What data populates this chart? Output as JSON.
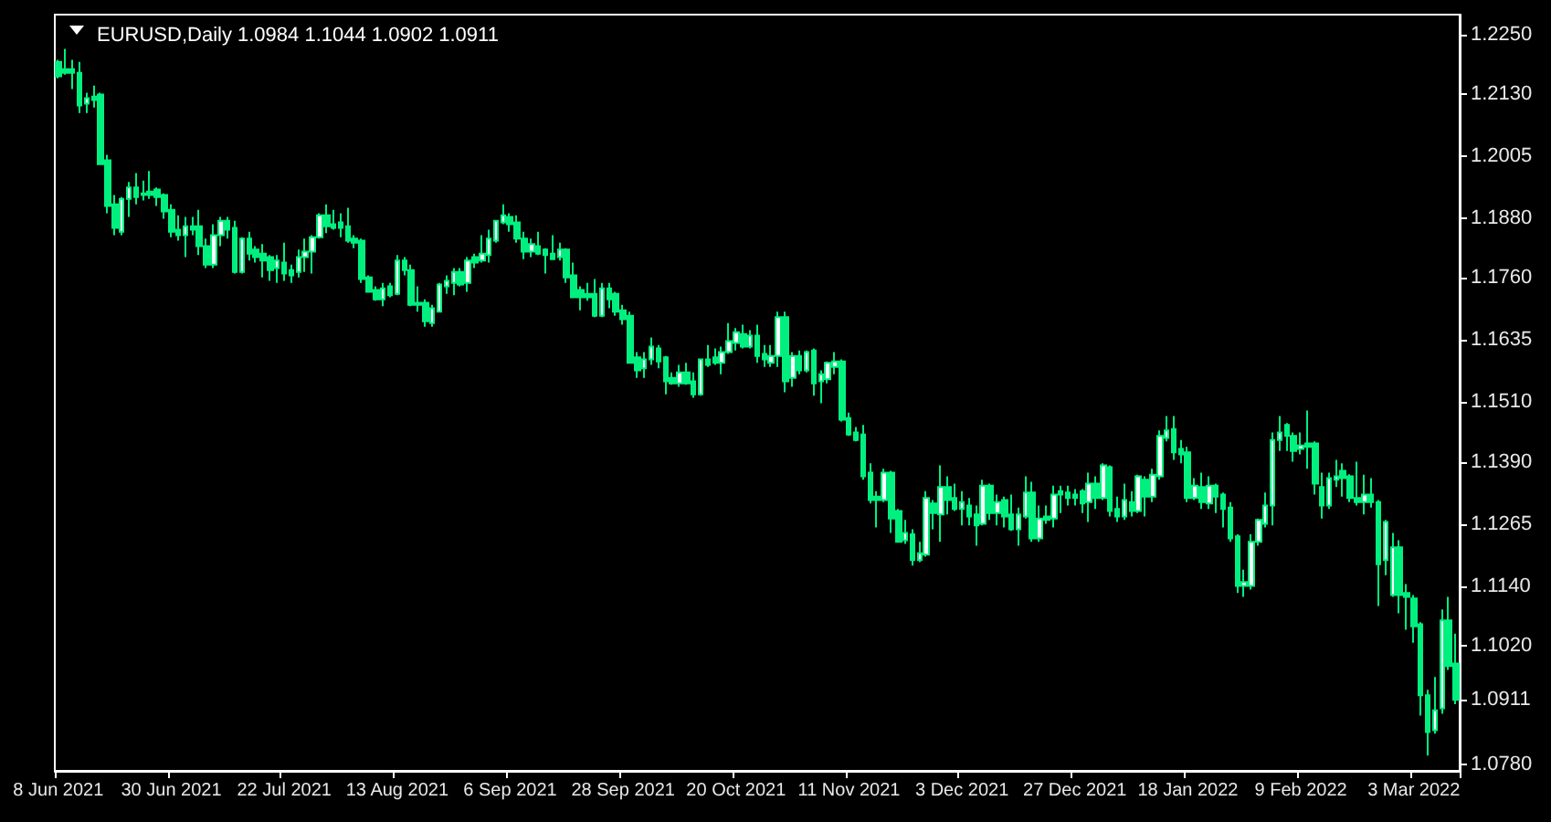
{
  "chart_data": {
    "type": "candlestick",
    "title": "EURUSD,Daily 1.0984 1.1044 1.0902 1.0911",
    "color": "#00f07f",
    "categories": [
      "8 Jun 2021",
      null,
      null,
      null,
      null,
      null,
      null,
      null,
      null,
      null,
      null,
      null,
      null,
      null,
      null,
      null,
      "30 Jun 2021",
      null,
      null,
      null,
      null,
      null,
      null,
      null,
      null,
      null,
      null,
      null,
      null,
      null,
      null,
      null,
      "22 Jul 2021",
      null,
      null,
      null,
      null,
      null,
      null,
      null,
      null,
      null,
      null,
      null,
      null,
      null,
      null,
      null,
      "13 Aug 2021",
      null,
      null,
      null,
      null,
      null,
      null,
      null,
      null,
      null,
      null,
      null,
      null,
      null,
      null,
      null,
      "6 Sep 2021",
      null,
      null,
      null,
      null,
      null,
      null,
      null,
      null,
      null,
      null,
      null,
      null,
      null,
      null,
      null,
      "28 Sep 2021",
      null,
      null,
      null,
      null,
      null,
      null,
      null,
      null,
      null,
      null,
      null,
      null,
      null,
      null,
      null,
      "20 Oct 2021",
      null,
      null,
      null,
      null,
      null,
      null,
      null,
      null,
      null,
      null,
      null,
      null,
      null,
      null,
      null,
      "11 Nov 2021",
      null,
      null,
      null,
      null,
      null,
      null,
      null,
      null,
      null,
      null,
      null,
      null,
      null,
      null,
      null,
      "3 Dec 2021",
      null,
      null,
      null,
      null,
      null,
      null,
      null,
      null,
      null,
      null,
      null,
      null,
      null,
      null,
      null,
      "27 Dec 2021",
      null,
      null,
      null,
      null,
      null,
      null,
      null,
      null,
      null,
      null,
      null,
      null,
      null,
      null,
      null,
      "18 Jan 2022",
      null,
      null,
      null,
      null,
      null,
      null,
      null,
      null,
      null,
      null,
      null,
      null,
      null,
      null,
      null,
      "9 Feb 2022",
      null,
      null,
      null,
      null,
      null,
      null,
      null,
      null,
      null,
      null,
      null,
      null,
      null,
      null,
      null,
      "3 Mar 2022",
      null,
      null,
      null,
      null,
      null,
      null
    ],
    "ylim": [
      1.0768,
      1.229
    ],
    "yticks": [
      {
        "value": 1.225,
        "label": "1.2250"
      },
      {
        "value": 1.213,
        "label": "1.2130"
      },
      1.2005,
      {
        "value": 1.188,
        "label": "1.1880"
      },
      {
        "value": 1.176,
        "label": "1.1760"
      },
      1.1635,
      {
        "value": 1.151,
        "label": "1.1510"
      },
      {
        "value": 1.139,
        "label": "1.1390"
      },
      1.1265,
      {
        "value": 1.114,
        "label": "1.1140"
      },
      {
        "value": 1.102,
        "label": "1.1020"
      },
      1.0911,
      {
        "value": 1.078,
        "label": "1.0780"
      }
    ],
    "grid": false,
    "ohlc": [
      [
        1.2195,
        1.2199,
        1.2162,
        1.2166
      ],
      [
        1.218,
        1.2221,
        1.2169,
        1.2173
      ],
      [
        1.218,
        1.2199,
        1.214,
        1.2173
      ],
      [
        1.2173,
        1.2195,
        1.2092,
        1.2107
      ],
      [
        1.2111,
        1.2133,
        1.2092,
        1.2122
      ],
      [
        1.2125,
        1.2147,
        1.2103,
        1.2118
      ],
      [
        1.2129,
        1.2133,
        1.1989,
        1.1989
      ],
      [
        1.1997,
        1.2008,
        1.189,
        1.1905
      ],
      [
        1.1908,
        1.1927,
        1.1846,
        1.1861
      ],
      [
        1.1853,
        1.1923,
        1.1846,
        1.1919
      ],
      [
        1.1919,
        1.1953,
        1.1883,
        1.1942
      ],
      [
        1.1942,
        1.1971,
        1.1908,
        1.1923
      ],
      [
        1.193,
        1.1956,
        1.1916,
        1.1927
      ],
      [
        1.1934,
        1.1975,
        1.1919,
        1.1927
      ],
      [
        1.1938,
        1.1942,
        1.1905,
        1.1923
      ],
      [
        1.1927,
        1.193,
        1.1879,
        1.1894
      ],
      [
        1.1897,
        1.1908,
        1.1842,
        1.1853
      ],
      [
        1.1857,
        1.1886,
        1.1835,
        1.1846
      ],
      [
        1.1846,
        1.1883,
        1.1802,
        1.1864
      ],
      [
        1.1864,
        1.1883,
        1.1846,
        1.1857
      ],
      [
        1.1864,
        1.1897,
        1.1806,
        1.1824
      ],
      [
        1.1824,
        1.1839,
        1.178,
        1.1787
      ],
      [
        1.1787,
        1.1868,
        1.178,
        1.1846
      ],
      [
        1.1846,
        1.1883,
        1.1824,
        1.1875
      ],
      [
        1.1875,
        1.1883,
        1.1839,
        1.1857
      ],
      [
        1.1861,
        1.1875,
        1.1769,
        1.1772
      ],
      [
        1.1772,
        1.1842,
        1.1769,
        1.1839
      ],
      [
        1.1839,
        1.1853,
        1.1795,
        1.1809
      ],
      [
        1.1817,
        1.1824,
        1.1791,
        1.1802
      ],
      [
        1.1809,
        1.1828,
        1.1761,
        1.1795
      ],
      [
        1.1802,
        1.1806,
        1.1754,
        1.1776
      ],
      [
        1.178,
        1.1806,
        1.175,
        1.1795
      ],
      [
        1.1791,
        1.1831,
        1.1754,
        1.1769
      ],
      [
        1.1776,
        1.1787,
        1.175,
        1.1765
      ],
      [
        1.1772,
        1.1817,
        1.1761,
        1.1802
      ],
      [
        1.1802,
        1.1839,
        1.1772,
        1.1813
      ],
      [
        1.1813,
        1.1846,
        1.1769,
        1.1842
      ],
      [
        1.1842,
        1.189,
        1.1839,
        1.1886
      ],
      [
        1.1886,
        1.1908,
        1.185,
        1.1864
      ],
      [
        1.1868,
        1.1897,
        1.1857,
        1.1861
      ],
      [
        1.1872,
        1.189,
        1.1842,
        1.1861
      ],
      [
        1.1864,
        1.1901,
        1.1831,
        1.1835
      ],
      [
        1.1839,
        1.1846,
        1.182,
        1.1831
      ],
      [
        1.1835,
        1.1839,
        1.175,
        1.1758
      ],
      [
        1.1761,
        1.1765,
        1.1732,
        1.1732
      ],
      [
        1.1736,
        1.1743,
        1.1714,
        1.1717
      ],
      [
        1.1717,
        1.175,
        1.1703,
        1.1739
      ],
      [
        1.1743,
        1.175,
        1.1721,
        1.1725
      ],
      [
        1.1728,
        1.1806,
        1.1725,
        1.1795
      ],
      [
        1.1795,
        1.1802,
        1.1765,
        1.1776
      ],
      [
        1.1776,
        1.1787,
        1.1703,
        1.1706
      ],
      [
        1.171,
        1.1743,
        1.1692,
        1.1706
      ],
      [
        1.171,
        1.1717,
        1.1662,
        1.1673
      ],
      [
        1.1669,
        1.1706,
        1.1662,
        1.1699
      ],
      [
        1.1692,
        1.175,
        1.1692,
        1.1747
      ],
      [
        1.1743,
        1.1765,
        1.1728,
        1.1754
      ],
      [
        1.175,
        1.178,
        1.1725,
        1.1772
      ],
      [
        1.1772,
        1.178,
        1.1743,
        1.1747
      ],
      [
        1.175,
        1.1802,
        1.1732,
        1.1795
      ],
      [
        1.1802,
        1.1809,
        1.178,
        1.1791
      ],
      [
        1.1795,
        1.1846,
        1.1791,
        1.1809
      ],
      [
        1.1806,
        1.1857,
        1.1791,
        1.1839
      ],
      [
        1.1835,
        1.1875,
        1.1831,
        1.1875
      ],
      [
        1.1872,
        1.1908,
        1.1868,
        1.1886
      ],
      [
        1.1883,
        1.189,
        1.1853,
        1.1868
      ],
      [
        1.1872,
        1.1886,
        1.1831,
        1.1839
      ],
      [
        1.1839,
        1.1853,
        1.1798,
        1.1813
      ],
      [
        1.1813,
        1.1839,
        1.1802,
        1.1828
      ],
      [
        1.1824,
        1.1853,
        1.1806,
        1.1809
      ],
      [
        1.1817,
        1.182,
        1.1769,
        1.1806
      ],
      [
        1.1809,
        1.1846,
        1.1798,
        1.1798
      ],
      [
        1.1802,
        1.1831,
        1.1795,
        1.1817
      ],
      [
        1.1817,
        1.182,
        1.175,
        1.1761
      ],
      [
        1.1765,
        1.1791,
        1.1721,
        1.1721
      ],
      [
        1.1736,
        1.1743,
        1.1695,
        1.1721
      ],
      [
        1.1728,
        1.175,
        1.1714,
        1.1721
      ],
      [
        1.1728,
        1.1758,
        1.1681,
        1.1684
      ],
      [
        1.1684,
        1.175,
        1.1681,
        1.1739
      ],
      [
        1.1739,
        1.175,
        1.1699,
        1.1717
      ],
      [
        1.1728,
        1.1732,
        1.1684,
        1.1692
      ],
      [
        1.1695,
        1.1706,
        1.1666,
        1.1677
      ],
      [
        1.1684,
        1.1692,
        1.1589,
        1.1589
      ],
      [
        1.16,
        1.1611,
        1.1559,
        1.1574
      ],
      [
        1.1578,
        1.1611,
        1.1559,
        1.1596
      ],
      [
        1.1596,
        1.164,
        1.1585,
        1.1622
      ],
      [
        1.1618,
        1.1625,
        1.1578,
        1.1592
      ],
      [
        1.16,
        1.1603,
        1.1526,
        1.1552
      ],
      [
        1.1559,
        1.157,
        1.1545,
        1.1548
      ],
      [
        1.1548,
        1.1585,
        1.1541,
        1.157
      ],
      [
        1.157,
        1.1589,
        1.1545,
        1.1548
      ],
      [
        1.1552,
        1.157,
        1.1519,
        1.1526
      ],
      [
        1.1526,
        1.1596,
        1.1523,
        1.1596
      ],
      [
        1.1596,
        1.1625,
        1.1581,
        1.1585
      ],
      [
        1.16,
        1.1618,
        1.1585,
        1.1589
      ],
      [
        1.1589,
        1.1622,
        1.1566,
        1.1611
      ],
      [
        1.1611,
        1.1669,
        1.1607,
        1.1633
      ],
      [
        1.1629,
        1.1659,
        1.1614,
        1.1651
      ],
      [
        1.1647,
        1.1666,
        1.1618,
        1.1622
      ],
      [
        1.1622,
        1.1655,
        1.1618,
        1.1644
      ],
      [
        1.1644,
        1.1666,
        1.1589,
        1.1603
      ],
      [
        1.1607,
        1.1625,
        1.1581,
        1.1596
      ],
      [
        1.1589,
        1.1625,
        1.1581,
        1.1603
      ],
      [
        1.1603,
        1.1692,
        1.1581,
        1.1681
      ],
      [
        1.1681,
        1.1692,
        1.153,
        1.1552
      ],
      [
        1.1559,
        1.1611,
        1.1541,
        1.1603
      ],
      [
        1.1603,
        1.1614,
        1.1566,
        1.1574
      ],
      [
        1.1574,
        1.1614,
        1.157,
        1.1611
      ],
      [
        1.1614,
        1.1618,
        1.1523,
        1.1548
      ],
      [
        1.1552,
        1.1574,
        1.1508,
        1.1566
      ],
      [
        1.1556,
        1.1592,
        1.1548,
        1.1589
      ],
      [
        1.1581,
        1.1611,
        1.1566,
        1.1592
      ],
      [
        1.1592,
        1.1596,
        1.1471,
        1.1475
      ],
      [
        1.1478,
        1.1489,
        1.1442,
        1.1445
      ],
      [
        1.1449,
        1.146,
        1.1431,
        1.1434
      ],
      [
        1.1445,
        1.1464,
        1.1354,
        1.1361
      ],
      [
        1.1368,
        1.1387,
        1.1306,
        1.1313
      ],
      [
        1.132,
        1.1331,
        1.1258,
        1.1313
      ],
      [
        1.1313,
        1.1376,
        1.1309,
        1.1368
      ],
      [
        1.1368,
        1.1372,
        1.1247,
        1.1276
      ],
      [
        1.1291,
        1.1295,
        1.1229,
        1.1229
      ],
      [
        1.1232,
        1.1273,
        1.1225,
        1.1247
      ],
      [
        1.1244,
        1.1254,
        1.1181,
        1.1192
      ],
      [
        1.1192,
        1.1229,
        1.1188,
        1.1206
      ],
      [
        1.1203,
        1.1331,
        1.1199,
        1.1317
      ],
      [
        1.1306,
        1.1313,
        1.1254,
        1.1287
      ],
      [
        1.1284,
        1.1383,
        1.1229,
        1.1339
      ],
      [
        1.1339,
        1.1361,
        1.1284,
        1.1313
      ],
      [
        1.1317,
        1.1346,
        1.1291,
        1.1295
      ],
      [
        1.1295,
        1.1331,
        1.1262,
        1.1309
      ],
      [
        1.1302,
        1.1317,
        1.1262,
        1.128
      ],
      [
        1.1284,
        1.1302,
        1.1221,
        1.1262
      ],
      [
        1.1265,
        1.1354,
        1.1262,
        1.1342
      ],
      [
        1.1342,
        1.1346,
        1.1273,
        1.1287
      ],
      [
        1.1287,
        1.1324,
        1.1262,
        1.1309
      ],
      [
        1.1313,
        1.132,
        1.1258,
        1.128
      ],
      [
        1.1284,
        1.1324,
        1.1251,
        1.1254
      ],
      [
        1.1254,
        1.1298,
        1.1221,
        1.1284
      ],
      [
        1.128,
        1.1361,
        1.1276,
        1.1328
      ],
      [
        1.1328,
        1.135,
        1.1229,
        1.1236
      ],
      [
        1.1236,
        1.1302,
        1.1229,
        1.1276
      ],
      [
        1.128,
        1.1302,
        1.1265,
        1.1273
      ],
      [
        1.1276,
        1.1342,
        1.1258,
        1.1324
      ],
      [
        1.1331,
        1.1342,
        1.1287,
        1.1324
      ],
      [
        1.1328,
        1.1342,
        1.1302,
        1.1317
      ],
      [
        1.1324,
        1.1335,
        1.1302,
        1.1317
      ],
      [
        1.1331,
        1.1335,
        1.1287,
        1.1306
      ],
      [
        1.1309,
        1.1368,
        1.1269,
        1.1346
      ],
      [
        1.1346,
        1.1361,
        1.1295,
        1.1317
      ],
      [
        1.1317,
        1.1387,
        1.1313,
        1.1383
      ],
      [
        1.1379,
        1.1383,
        1.128,
        1.1291
      ],
      [
        1.1295,
        1.132,
        1.1269,
        1.128
      ],
      [
        1.128,
        1.1346,
        1.1273,
        1.1313
      ],
      [
        1.1309,
        1.1331,
        1.128,
        1.1291
      ],
      [
        1.1291,
        1.1364,
        1.1287,
        1.1361
      ],
      [
        1.1354,
        1.1361,
        1.128,
        1.132
      ],
      [
        1.132,
        1.1376,
        1.1309,
        1.1364
      ],
      [
        1.1361,
        1.1453,
        1.1354,
        1.1442
      ],
      [
        1.1438,
        1.1482,
        1.1431,
        1.1453
      ],
      [
        1.1456,
        1.1482,
        1.1394,
        1.1409
      ],
      [
        1.1416,
        1.1434,
        1.1387,
        1.1405
      ],
      [
        1.1409,
        1.142,
        1.1309,
        1.1317
      ],
      [
        1.1317,
        1.1357,
        1.1313,
        1.1342
      ],
      [
        1.1339,
        1.1368,
        1.1295,
        1.1309
      ],
      [
        1.1306,
        1.1361,
        1.1295,
        1.1342
      ],
      [
        1.1342,
        1.1346,
        1.1287,
        1.132
      ],
      [
        1.1324,
        1.1328,
        1.1258,
        1.1295
      ],
      [
        1.1298,
        1.1309,
        1.1229,
        1.1236
      ],
      [
        1.124,
        1.1244,
        1.1126,
        1.114
      ],
      [
        1.114,
        1.1173,
        1.1118,
        1.1148
      ],
      [
        1.114,
        1.1244,
        1.1133,
        1.1229
      ],
      [
        1.1229,
        1.1276,
        1.1221,
        1.1273
      ],
      [
        1.1265,
        1.1328,
        1.1258,
        1.1302
      ],
      [
        1.1302,
        1.1449,
        1.1262,
        1.1434
      ],
      [
        1.1434,
        1.1482,
        1.1412,
        1.1449
      ],
      [
        1.1464,
        1.1468,
        1.1412,
        1.1442
      ],
      [
        1.1442,
        1.1449,
        1.139,
        1.1412
      ],
      [
        1.1416,
        1.1449,
        1.1405,
        1.1423
      ],
      [
        1.1427,
        1.1493,
        1.1376,
        1.142
      ],
      [
        1.1427,
        1.1431,
        1.1324,
        1.1346
      ],
      [
        1.1339,
        1.1368,
        1.1276,
        1.1302
      ],
      [
        1.1302,
        1.1368,
        1.1295,
        1.1357
      ],
      [
        1.1354,
        1.1394,
        1.1339,
        1.1361
      ],
      [
        1.1372,
        1.1387,
        1.132,
        1.1357
      ],
      [
        1.1361,
        1.1365,
        1.1309,
        1.1317
      ],
      [
        1.1317,
        1.139,
        1.1302,
        1.1309
      ],
      [
        1.1309,
        1.1364,
        1.1284,
        1.1324
      ],
      [
        1.1324,
        1.1357,
        1.1298,
        1.1309
      ],
      [
        1.1309,
        1.1313,
        1.11,
        1.1184
      ],
      [
        1.1192,
        1.1273,
        1.1162,
        1.1269
      ],
      [
        1.1122,
        1.1247,
        1.1118,
        1.1218
      ],
      [
        1.1218,
        1.1232,
        1.1085,
        1.1122
      ],
      [
        1.1126,
        1.1144,
        1.1052,
        1.1118
      ],
      [
        1.1115,
        1.1122,
        1.1026,
        1.1059
      ],
      [
        1.1063,
        1.1067,
        1.0879,
        1.092
      ],
      [
        1.092,
        1.0931,
        1.0799,
        1.0846
      ],
      [
        1.085,
        1.0957,
        1.0843,
        1.089
      ],
      [
        1.0894,
        1.1093,
        1.0883,
        1.1071
      ],
      [
        1.1071,
        1.1118,
        1.0971,
        1.0979
      ],
      [
        1.0984,
        1.1044,
        1.0902,
        1.0911
      ]
    ]
  }
}
